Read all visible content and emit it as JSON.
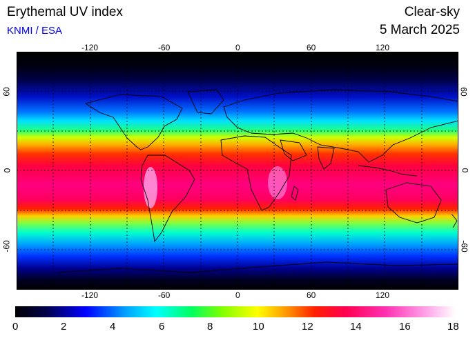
{
  "header": {
    "title": "Erythemal UV index",
    "credit": "KNMI / ESA",
    "mode": "Clear-sky",
    "date": "5 March 2025"
  },
  "map": {
    "lon_labels": [
      "-120",
      "-60",
      "0",
      "60",
      "120"
    ],
    "lat_labels": [
      "60",
      "0",
      "-60"
    ],
    "lon_range": [
      -180,
      180
    ],
    "lat_range": [
      -90,
      90
    ],
    "grid": true,
    "grid_style": "dashed"
  },
  "colorbar": {
    "labels": [
      "0",
      "2",
      "4",
      "6",
      "8",
      "10",
      "12",
      "14",
      "16",
      "18"
    ],
    "range": [
      0,
      18
    ],
    "colors": [
      "#000000",
      "#00004a",
      "#0000ff",
      "#00a0ff",
      "#00ffff",
      "#00ff80",
      "#40ff00",
      "#c8ff00",
      "#ffff00",
      "#ffb000",
      "#ff5000",
      "#ff0000",
      "#ff0050",
      "#ff0090",
      "#ff30c0",
      "#ff80e0",
      "#ffc8f0",
      "#ffffff"
    ]
  }
}
